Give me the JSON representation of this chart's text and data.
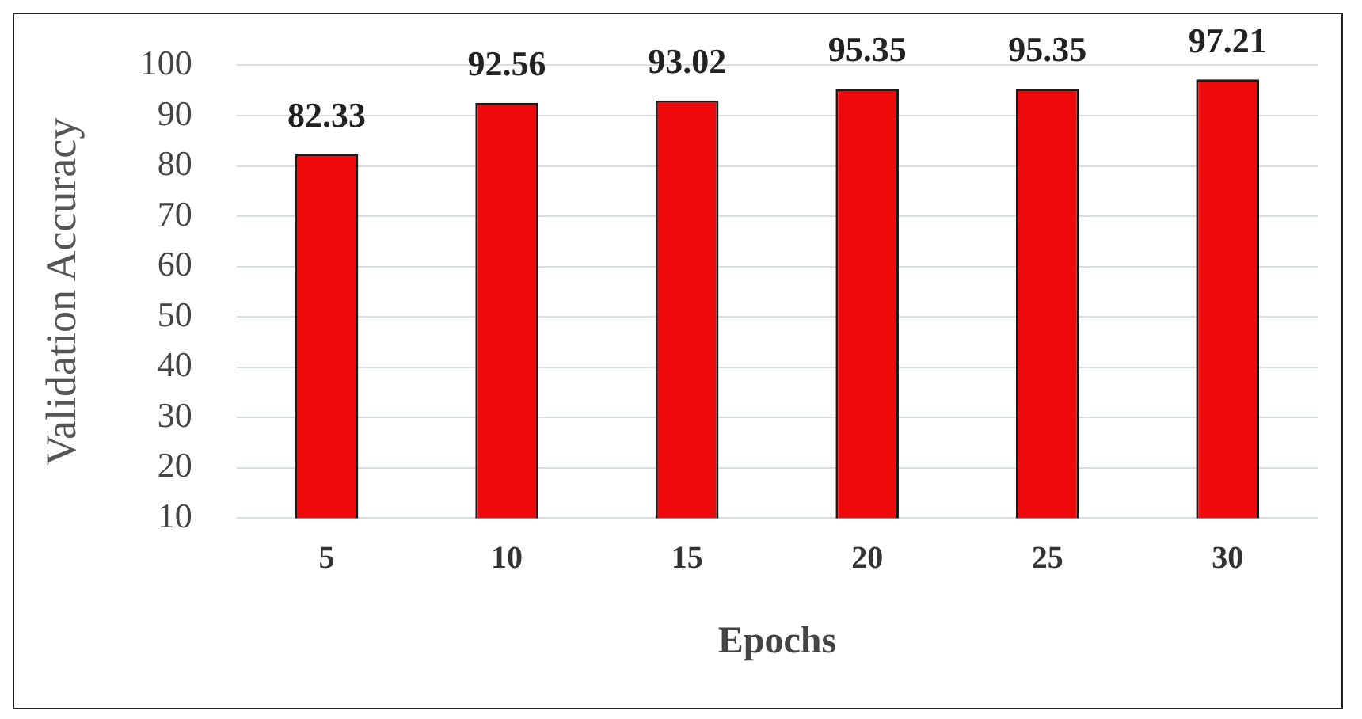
{
  "chart_data": {
    "type": "bar",
    "xlabel": "Epochs",
    "ylabel": "Validation Accuracy",
    "categories": [
      "5",
      "10",
      "15",
      "20",
      "25",
      "30"
    ],
    "values": [
      82.33,
      92.56,
      93.02,
      95.35,
      95.35,
      97.21
    ],
    "color": "#ee0a0a",
    "ylim": [
      10,
      100
    ],
    "yticks": [
      10,
      20,
      30,
      40,
      50,
      60,
      70,
      80,
      90,
      100
    ],
    "grid": "y",
    "legend": false,
    "data_labels": true
  }
}
